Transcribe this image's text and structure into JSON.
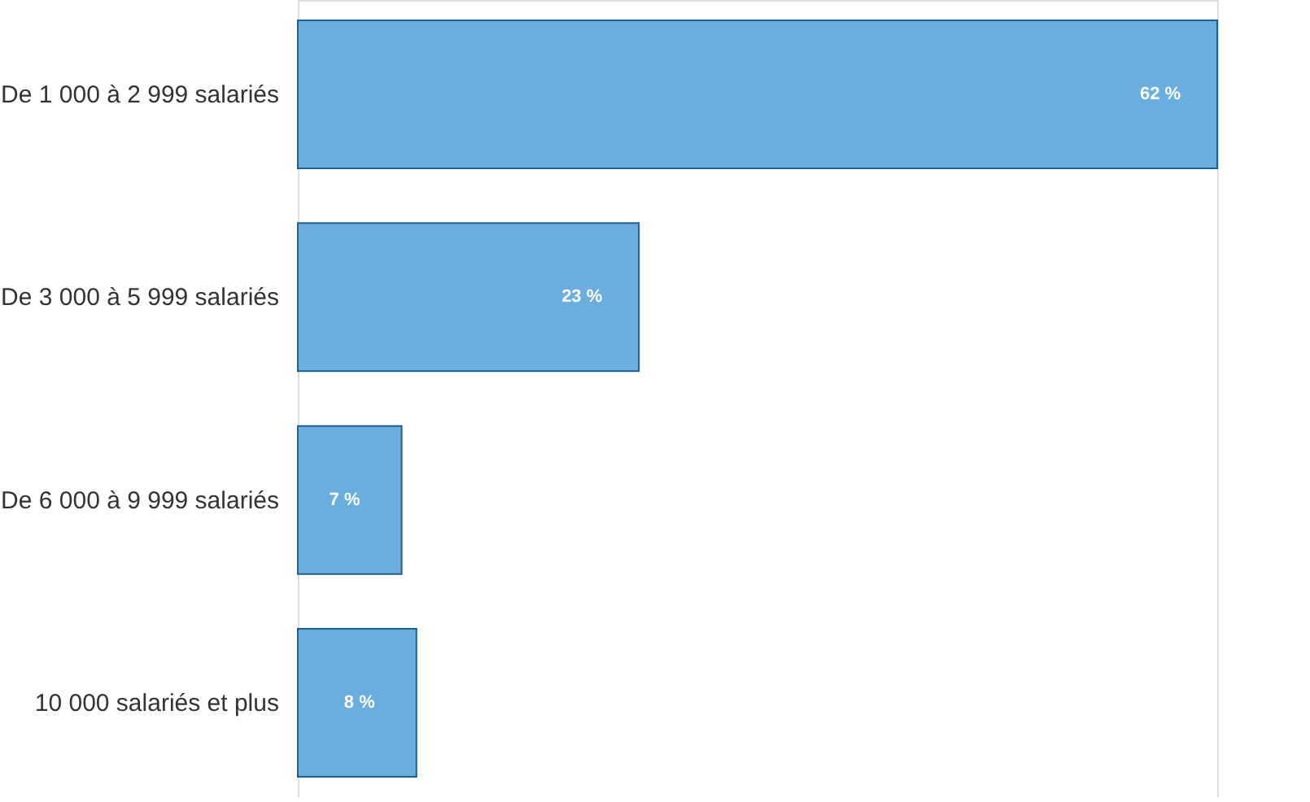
{
  "chart_data": {
    "type": "bar",
    "orientation": "horizontal",
    "categories": [
      "De 1 000 à 2 999 salariés",
      "De 3 000 à 5 999 salariés",
      "De 6 000 à 9 999 salariés",
      "10 000 salariés et plus"
    ],
    "values": [
      62,
      23,
      7,
      8
    ],
    "value_labels": [
      "62 %",
      "23 %",
      "7 %",
      "8 %"
    ],
    "color": "#6aaee0"
  }
}
